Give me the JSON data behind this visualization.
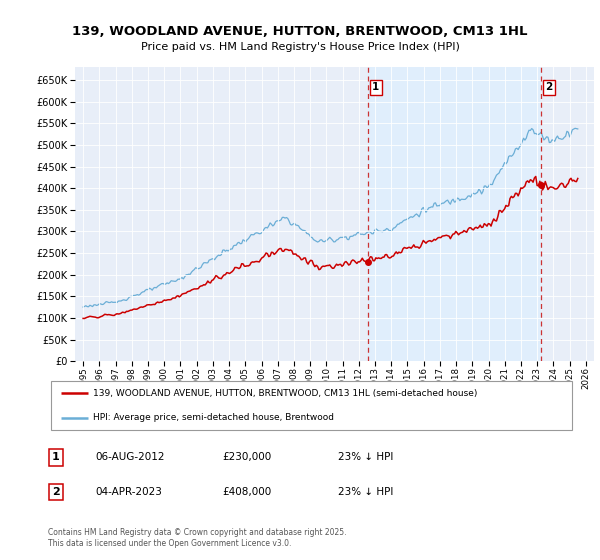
{
  "title": "139, WOODLAND AVENUE, HUTTON, BRENTWOOD, CM13 1HL",
  "subtitle": "Price paid vs. HM Land Registry's House Price Index (HPI)",
  "hpi_color": "#6baed6",
  "price_color": "#cc0000",
  "dashed_color": "#cc3333",
  "shaded_color": "#ddeeff",
  "background_color": "#e8eef8",
  "plot_bg": "#e8eef8",
  "ylim": [
    0,
    680000
  ],
  "yticks": [
    0,
    50000,
    100000,
    150000,
    200000,
    250000,
    300000,
    350000,
    400000,
    450000,
    500000,
    550000,
    600000,
    650000
  ],
  "legend1_label": "139, WOODLAND AVENUE, HUTTON, BRENTWOOD, CM13 1HL (semi-detached house)",
  "legend2_label": "HPI: Average price, semi-detached house, Brentwood",
  "annotation1_date": "06-AUG-2012",
  "annotation1_price": "£230,000",
  "annotation1_hpi": "23% ↓ HPI",
  "annotation2_date": "04-APR-2023",
  "annotation2_price": "£408,000",
  "annotation2_hpi": "23% ↓ HPI",
  "footer": "Contains HM Land Registry data © Crown copyright and database right 2025.\nThis data is licensed under the Open Government Licence v3.0.",
  "sale1_year": 2012.58,
  "sale1_price": 230000,
  "sale2_year": 2023.25,
  "sale2_price": 408000
}
